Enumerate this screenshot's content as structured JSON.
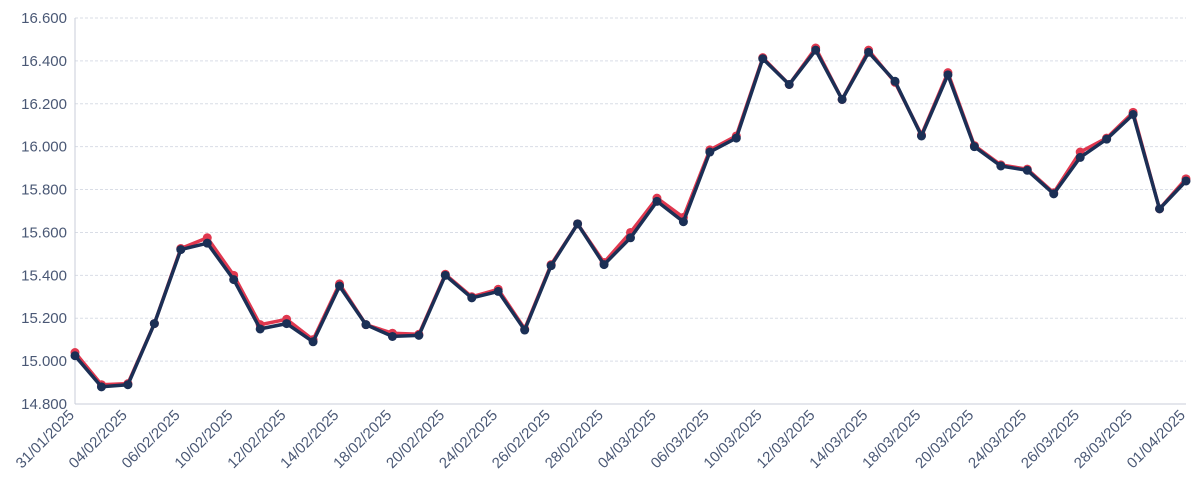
{
  "chart_data": {
    "type": "line",
    "title": "",
    "xlabel": "",
    "ylabel": "",
    "ylim": [
      14800,
      16600
    ],
    "y_ticks": [
      14800,
      15000,
      15200,
      15400,
      15600,
      15800,
      16000,
      16200,
      16400,
      16600
    ],
    "y_tick_labels": [
      "14.800",
      "15.000",
      "15.200",
      "15.400",
      "15.600",
      "15.800",
      "16.000",
      "16.200",
      "16.400",
      "16.600"
    ],
    "grid": true,
    "x_tick_labels": [
      "31/01/2025",
      "04/02/2025",
      "06/02/2025",
      "10/02/2025",
      "12/02/2025",
      "14/02/2025",
      "18/02/2025",
      "20/02/2025",
      "24/02/2025",
      "26/02/2025",
      "28/02/2025",
      "04/03/2025",
      "06/03/2025",
      "10/03/2025",
      "12/03/2025",
      "14/03/2025",
      "18/03/2025",
      "20/03/2025",
      "24/03/2025",
      "26/03/2025",
      "28/03/2025",
      "01/04/2025"
    ],
    "x": [
      "31/01/2025",
      "03/02/2025",
      "04/02/2025",
      "05/02/2025",
      "06/02/2025",
      "07/02/2025",
      "10/02/2025",
      "11/02/2025",
      "12/02/2025",
      "13/02/2025",
      "14/02/2025",
      "17/02/2025",
      "18/02/2025",
      "19/02/2025",
      "20/02/2025",
      "21/02/2025",
      "24/02/2025",
      "25/02/2025",
      "26/02/2025",
      "27/02/2025",
      "28/02/2025",
      "03/03/2025",
      "04/03/2025",
      "05/03/2025",
      "06/03/2025",
      "07/03/2025",
      "10/03/2025",
      "11/03/2025",
      "12/03/2025",
      "13/03/2025",
      "14/03/2025",
      "17/03/2025",
      "18/03/2025",
      "19/03/2025",
      "20/03/2025",
      "21/03/2025",
      "24/03/2025",
      "25/03/2025",
      "26/03/2025",
      "27/03/2025",
      "28/03/2025",
      "31/03/2025",
      "01/04/2025"
    ],
    "series": [
      {
        "color": "#e0384f",
        "values": [
          15040,
          14890,
          14895,
          15175,
          15525,
          15575,
          15400,
          15170,
          15195,
          15100,
          15360,
          15170,
          15130,
          15125,
          15405,
          15300,
          15335,
          15150,
          15450,
          15640,
          15460,
          15600,
          15760,
          15670,
          15985,
          16050,
          16415,
          16290,
          16460,
          16220,
          16450,
          16300,
          16055,
          16345,
          16005,
          15915,
          15895,
          15785,
          15975,
          16040,
          16160,
          15710,
          15850
        ]
      },
      {
        "color": "#1b2f55",
        "values": [
          15025,
          14880,
          14890,
          15175,
          15520,
          15550,
          15380,
          15150,
          15175,
          15090,
          15350,
          15170,
          15115,
          15120,
          15400,
          15295,
          15325,
          15145,
          15445,
          15640,
          15450,
          15575,
          15745,
          15650,
          15975,
          16040,
          16410,
          16290,
          16450,
          16220,
          16440,
          16305,
          16050,
          16335,
          16000,
          15910,
          15890,
          15780,
          15950,
          16035,
          16150,
          15710,
          15840
        ]
      }
    ]
  }
}
